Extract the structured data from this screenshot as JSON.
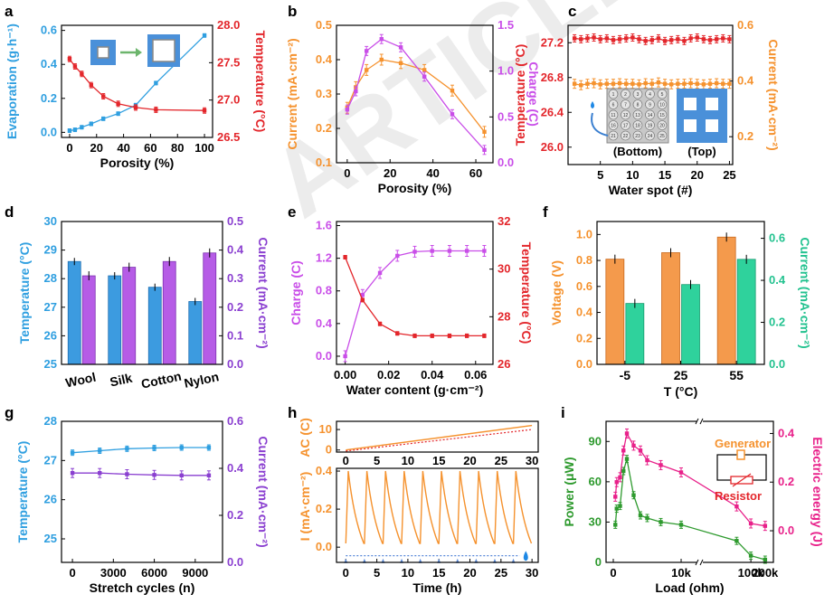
{
  "colors": {
    "blue": "#2f9fe0",
    "red": "#e3262b",
    "orange": "#f5922e",
    "purple": "#c94ee8",
    "green": "#22c28f",
    "dkgreen": "#2e9a2e",
    "pink": "#e8218a",
    "dots": "#5b8ad8"
  },
  "chart_data": [
    {
      "panel": "a",
      "type": "line",
      "xlabel": "Porosity (%)",
      "ylabel": "Evaporation (g·h⁻¹)",
      "y2label": "Temperature (°C)",
      "xlim": [
        -6,
        106
      ],
      "ylim": [
        -0.03,
        0.63
      ],
      "y2lim": [
        26.5,
        28.0
      ],
      "xticks": [
        "0",
        "20",
        "40",
        "60",
        "80",
        "100"
      ],
      "yticks": [
        "0.0",
        "0.2",
        "0.4",
        "0.6"
      ],
      "y2ticks": [
        "26.5",
        "27.0",
        "27.5",
        "28.0"
      ],
      "series": [
        {
          "name": "Evaporation",
          "axis": "left",
          "x": [
            0,
            4,
            9,
            16,
            25,
            36,
            49,
            64,
            100
          ],
          "y": [
            0.01,
            0.015,
            0.03,
            0.05,
            0.08,
            0.11,
            0.16,
            0.29,
            0.57
          ]
        },
        {
          "name": "Temperature",
          "axis": "right",
          "x": [
            0,
            4,
            9,
            16,
            25,
            36,
            49,
            64,
            100
          ],
          "y": [
            27.55,
            27.45,
            27.35,
            27.2,
            27.05,
            26.95,
            26.9,
            26.87,
            26.86
          ]
        }
      ]
    },
    {
      "panel": "b",
      "type": "line",
      "xlabel": "Porosity (%)",
      "ylabel": "Current (mA·cm⁻²)",
      "y2label": "Charge (C)",
      "xlim": [
        -5,
        68
      ],
      "ylim": [
        0.1,
        0.5
      ],
      "y2lim": [
        0.0,
        1.5
      ],
      "xticks": [
        "0",
        "20",
        "40",
        "60"
      ],
      "yticks": [
        "0.1",
        "0.2",
        "0.3",
        "0.4",
        "0.5"
      ],
      "y2ticks": [
        "0.0",
        "0.5",
        "1.0",
        "1.5"
      ],
      "series": [
        {
          "name": "Current",
          "axis": "left",
          "x": [
            0,
            4,
            9,
            16,
            25,
            36,
            49,
            64
          ],
          "y": [
            0.26,
            0.32,
            0.37,
            0.4,
            0.39,
            0.37,
            0.31,
            0.19
          ]
        },
        {
          "name": "Charge",
          "axis": "right",
          "x": [
            0,
            4,
            9,
            16,
            25,
            36,
            49,
            64
          ],
          "y": [
            0.58,
            0.78,
            1.22,
            1.35,
            1.26,
            0.94,
            0.53,
            0.14
          ]
        }
      ]
    },
    {
      "panel": "c",
      "type": "line",
      "xlabel": "Water spot (#)",
      "ylabel": "Temperature (°C)",
      "y2label": "Current (mA·cm⁻²)",
      "xlim": [
        0,
        25.5
      ],
      "ylim": [
        25.8,
        27.4
      ],
      "y2lim": [
        0.1,
        0.6
      ],
      "xticks": [
        "5",
        "10",
        "15",
        "20",
        "25"
      ],
      "yticks": [
        "26.0",
        "26.4",
        "26.8",
        "27.2"
      ],
      "y2ticks": [
        "0.2",
        "0.4",
        "0.6"
      ],
      "inset_labels": [
        "(Bottom)",
        "(Top)"
      ],
      "series": [
        {
          "name": "Temperature",
          "axis": "left",
          "x": [
            1,
            2,
            3,
            4,
            5,
            6,
            7,
            8,
            9,
            10,
            11,
            12,
            13,
            14,
            15,
            16,
            17,
            18,
            19,
            20,
            21,
            22,
            23,
            24,
            25
          ],
          "y": [
            27.25,
            27.24,
            27.25,
            27.26,
            27.24,
            27.25,
            27.23,
            27.24,
            27.25,
            27.26,
            27.24,
            27.22,
            27.23,
            27.25,
            27.22,
            27.23,
            27.24,
            27.22,
            27.25,
            27.26,
            27.24,
            27.23,
            27.24,
            27.25,
            27.24
          ]
        },
        {
          "name": "Current",
          "axis": "right",
          "x": [
            1,
            2,
            3,
            4,
            5,
            6,
            7,
            8,
            9,
            10,
            11,
            12,
            13,
            14,
            15,
            16,
            17,
            18,
            19,
            20,
            21,
            22,
            23,
            24,
            25
          ],
          "y": [
            0.39,
            0.385,
            0.39,
            0.392,
            0.388,
            0.39,
            0.39,
            0.392,
            0.39,
            0.39,
            0.388,
            0.392,
            0.39,
            0.395,
            0.39,
            0.388,
            0.39,
            0.39,
            0.392,
            0.39,
            0.388,
            0.39,
            0.392,
            0.39,
            0.39
          ]
        }
      ]
    },
    {
      "panel": "d",
      "type": "bar",
      "categories": [
        "Wool",
        "Silk",
        "Cotton",
        "Nylon"
      ],
      "ylabel": "Temperature (°C)",
      "y2label": "Current (mA·cm⁻²)",
      "ylim": [
        25,
        30
      ],
      "y2lim": [
        0.0,
        0.5
      ],
      "yticks": [
        "25",
        "26",
        "27",
        "28",
        "29",
        "30"
      ],
      "y2ticks": [
        "0.0",
        "0.1",
        "0.2",
        "0.3",
        "0.4",
        "0.5"
      ],
      "series": [
        {
          "name": "Temperature",
          "axis": "left",
          "values": [
            28.6,
            28.1,
            27.7,
            27.2
          ]
        },
        {
          "name": "Current",
          "axis": "right",
          "values": [
            0.31,
            0.34,
            0.36,
            0.39
          ]
        }
      ]
    },
    {
      "panel": "e",
      "type": "line",
      "xlabel": "Water content (g·cm⁻²)",
      "ylabel": "Charge (C)",
      "y2label": "Temperature (°C)",
      "xlim": [
        -0.004,
        0.068
      ],
      "ylim": [
        -0.1,
        1.65
      ],
      "y2lim": [
        26,
        32
      ],
      "xticks": [
        "0.00",
        "0.02",
        "0.04",
        "0.06"
      ],
      "yticks": [
        "0.0",
        "0.4",
        "0.8",
        "1.2",
        "1.6"
      ],
      "y2ticks": [
        "26",
        "28",
        "30",
        "32"
      ],
      "series": [
        {
          "name": "Charge",
          "axis": "left",
          "x": [
            0,
            0.008,
            0.016,
            0.024,
            0.032,
            0.04,
            0.048,
            0.056,
            0.064
          ],
          "y": [
            0.0,
            0.75,
            1.02,
            1.23,
            1.28,
            1.29,
            1.29,
            1.29,
            1.29
          ]
        },
        {
          "name": "Temperature",
          "axis": "right",
          "x": [
            0,
            0.008,
            0.016,
            0.024,
            0.032,
            0.04,
            0.048,
            0.056,
            0.064
          ],
          "y": [
            30.5,
            28.7,
            27.7,
            27.3,
            27.2,
            27.2,
            27.2,
            27.2,
            27.2
          ]
        }
      ]
    },
    {
      "panel": "f",
      "type": "bar",
      "categories": [
        "-5",
        "25",
        "55"
      ],
      "xlabel": "T (°C)",
      "ylabel": "Voltage (V)",
      "y2label": "Current (mA·cm⁻²)",
      "ylim": [
        0.0,
        1.1
      ],
      "y2lim": [
        0.0,
        0.68
      ],
      "yticks": [
        "0.0",
        "0.2",
        "0.4",
        "0.6",
        "0.8",
        "1.0"
      ],
      "y2ticks": [
        "0.0",
        "0.2",
        "0.4",
        "0.6"
      ],
      "series": [
        {
          "name": "Voltage",
          "axis": "left",
          "values": [
            0.81,
            0.86,
            0.98
          ]
        },
        {
          "name": "Current",
          "axis": "right",
          "values": [
            0.29,
            0.38,
            0.5
          ]
        }
      ]
    },
    {
      "panel": "g",
      "type": "line",
      "xlabel": "Stretch cycles (n)",
      "ylabel": "Temperature (°C)",
      "y2label": "Current (mA·cm⁻²)",
      "xlim": [
        -800,
        11000
      ],
      "ylim": [
        24.4,
        28.0
      ],
      "y2lim": [
        0.0,
        0.6
      ],
      "xticks": [
        "0",
        "3000",
        "6000",
        "9000"
      ],
      "yticks": [
        "25",
        "26",
        "27",
        "28"
      ],
      "y2ticks": [
        "0.0",
        "0.2",
        "0.4",
        "0.6"
      ],
      "series": [
        {
          "name": "Temperature",
          "axis": "left",
          "x": [
            0,
            2000,
            4000,
            6000,
            8000,
            10000
          ],
          "y": [
            27.2,
            27.25,
            27.3,
            27.32,
            27.33,
            27.33
          ]
        },
        {
          "name": "Current",
          "axis": "right",
          "x": [
            0,
            2000,
            4000,
            6000,
            8000,
            10000
          ],
          "y": [
            0.38,
            0.38,
            0.375,
            0.372,
            0.37,
            0.37
          ]
        }
      ]
    },
    {
      "panel": "h",
      "type": "line",
      "xlabel": "Time (h)",
      "ylabel": "I (mA·cm⁻²)",
      "ylabel_top": "AC (C)",
      "xlim": [
        -1.5,
        31
      ],
      "ylim": [
        -0.08,
        0.5
      ],
      "ylim_top": [
        -1,
        14
      ],
      "xticks": [
        "0",
        "5",
        "10",
        "15",
        "20",
        "25",
        "30"
      ],
      "yticks": [
        "0.0",
        "0.2",
        "0.4"
      ],
      "yticks_top": [
        "0",
        "10"
      ],
      "pulses_start_h": [
        0,
        3,
        6,
        9,
        12,
        15,
        18,
        21,
        24,
        27
      ],
      "pulse_peak": 0.4,
      "baseline": 0.02,
      "accumulated_charge_end": 12
    },
    {
      "panel": "i",
      "type": "line",
      "xlabel": "Load (ohm)",
      "ylabel": "Power (μW)",
      "y2label": "Electric energy (J)",
      "ylim": [
        0,
        105
      ],
      "y2lim": [
        -0.13,
        0.45
      ],
      "xticks": [
        "0",
        "10k",
        "100k",
        "200k"
      ],
      "yticks": [
        "0",
        "30",
        "60",
        "90"
      ],
      "y2ticks": [
        "0.0",
        "0.2",
        "0.4"
      ],
      "legend_labels": [
        "Generator",
        "Resistor"
      ],
      "series": [
        {
          "name": "Power",
          "axis": "left",
          "x": [
            "300",
            "500",
            "1k",
            "1.5k",
            "2k",
            "3k",
            "4k",
            "5k",
            "7k",
            "10k",
            "50k",
            "100k",
            "200k"
          ],
          "y": [
            28,
            40,
            42,
            68,
            77,
            50,
            35,
            33,
            30,
            28,
            16,
            5,
            2
          ]
        },
        {
          "name": "Electric energy",
          "axis": "right",
          "x": [
            "300",
            "500",
            "1k",
            "1.5k",
            "2k",
            "3k",
            "4k",
            "5k",
            "7k",
            "10k",
            "50k",
            "100k",
            "200k"
          ],
          "y": [
            0.14,
            0.2,
            0.22,
            0.33,
            0.4,
            0.35,
            0.33,
            0.29,
            0.27,
            0.24,
            0.1,
            0.03,
            0.02
          ]
        }
      ]
    }
  ]
}
